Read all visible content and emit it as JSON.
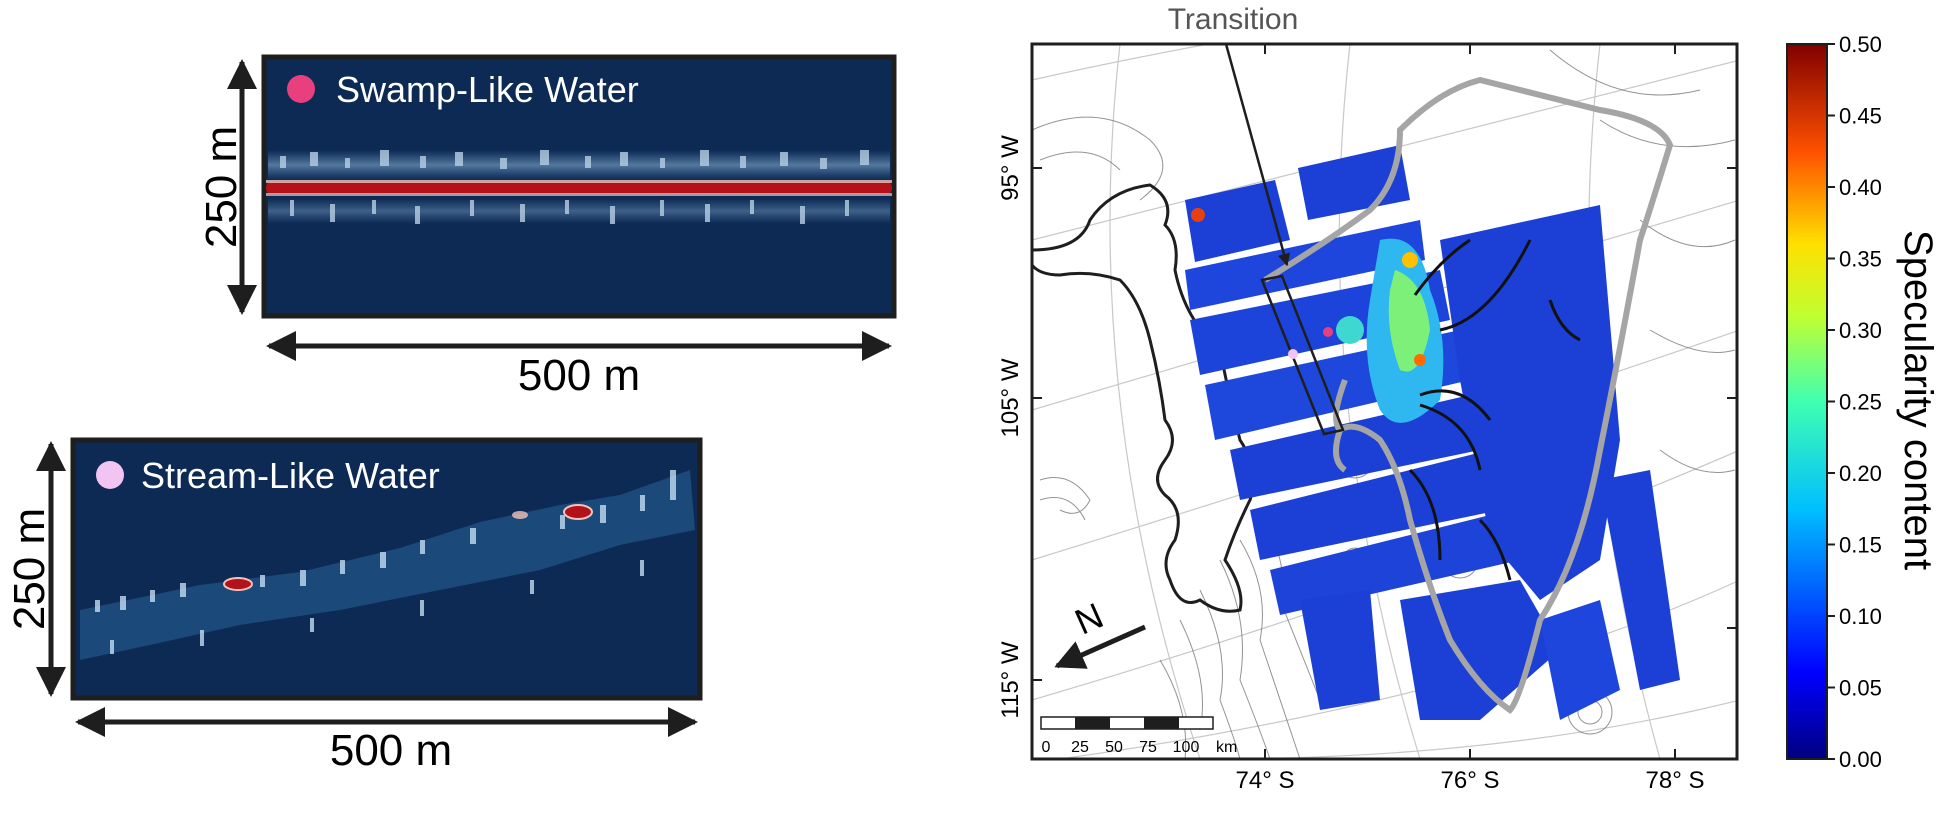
{
  "panels": {
    "swamp": {
      "title": "Swamp-Like Water",
      "dot_color": "#e8407e",
      "height_label": "250 m",
      "width_label": "500 m"
    },
    "stream": {
      "title": "Stream-Like Water",
      "dot_color": "#f2c4f2",
      "height_label": "250 m",
      "width_label": "500 m"
    }
  },
  "map": {
    "transition_label": "Transition",
    "lon_labels": [
      "95° W",
      "105° W",
      "115° W"
    ],
    "lat_labels": [
      "74° S",
      "76° S",
      "78° S"
    ],
    "north_label": "N",
    "scale_ticks": [
      "0",
      "25",
      "50",
      "75",
      "100"
    ],
    "scale_unit": "km"
  },
  "colorbar": {
    "title": "Specularity content",
    "ticks": [
      "0.50",
      "0.45",
      "0.40",
      "0.35",
      "0.30",
      "0.25",
      "0.20",
      "0.15",
      "0.10",
      "0.05",
      "0.00"
    ]
  },
  "colors": {
    "radar_bg": "#0d2a54",
    "outline_gray": "#a5a5a5",
    "map_fill": "#1c3fd6"
  }
}
